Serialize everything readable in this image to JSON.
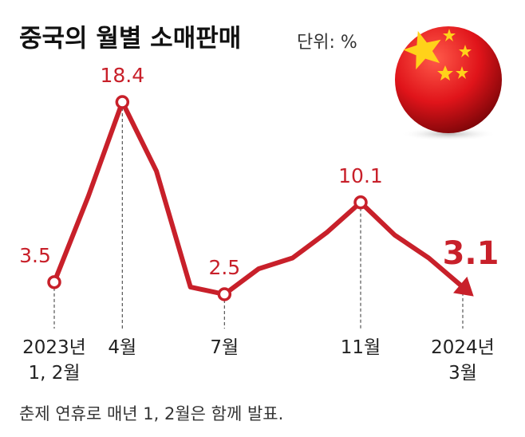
{
  "chart_data": {
    "type": "line",
    "title": "중국의 월별 소매판매",
    "unit": "단위: %",
    "note": "춘제 연휴로 매년 1, 2월은 함께 발표.",
    "categories": [
      "2023년\n1, 2월",
      null,
      "4월",
      null,
      null,
      "7월",
      null,
      null,
      null,
      "11월",
      null,
      null,
      "2024년\n3월"
    ],
    "values": [
      3.5,
      10.6,
      18.4,
      12.7,
      3.1,
      2.5,
      4.6,
      5.5,
      7.6,
      10.1,
      7.4,
      5.5,
      3.1
    ],
    "value_labels": [
      "3.5",
      null,
      "18.4",
      null,
      null,
      "2.5",
      null,
      null,
      null,
      "10.1",
      null,
      null,
      "3.1"
    ],
    "color": "#c8202a"
  }
}
